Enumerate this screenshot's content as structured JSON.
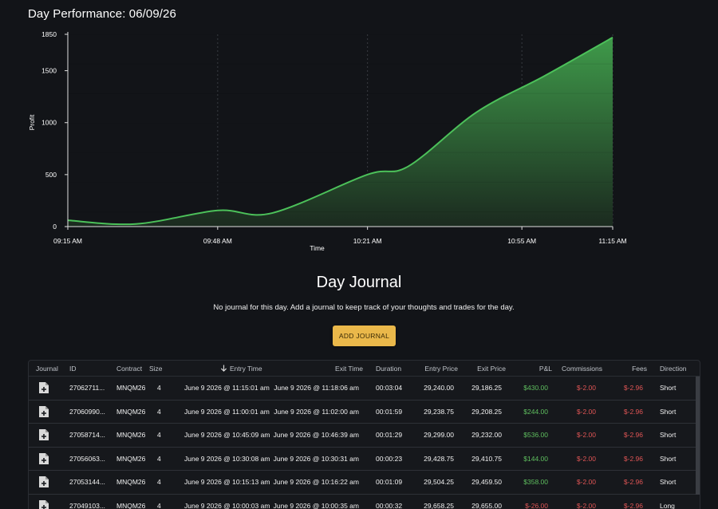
{
  "header": {
    "title": "Day Performance: 06/09/26"
  },
  "chart_data": {
    "type": "area",
    "title": "",
    "xlabel": "Time",
    "ylabel": "Profit",
    "ylim": [
      0,
      1850
    ],
    "y_ticks": [
      0,
      500,
      1000,
      1500,
      1850
    ],
    "x_ticks": [
      "09:15 AM",
      "09:48 AM",
      "10:21 AM",
      "10:55 AM",
      "11:15 AM"
    ],
    "x_tick_minutes": [
      0,
      33,
      66,
      100,
      120
    ],
    "grid": "vertical dashed at x ticks",
    "color": "#4cc15a",
    "points": [
      {
        "x": "09:15 AM",
        "y": 60
      },
      {
        "x": "09:30 AM",
        "y": 25
      },
      {
        "x": "09:48 AM",
        "y": 155
      },
      {
        "x": "10:00 AM",
        "y": 130
      },
      {
        "x": "10:21 AM",
        "y": 500
      },
      {
        "x": "10:30 AM",
        "y": 580
      },
      {
        "x": "10:45 AM",
        "y": 1100
      },
      {
        "x": "11:00 AM",
        "y": 1450
      },
      {
        "x": "11:15 AM",
        "y": 1820
      }
    ],
    "point_minutes": [
      0,
      15,
      33,
      45,
      66,
      75,
      90,
      105,
      120
    ]
  },
  "journal": {
    "title": "Day Journal",
    "empty_message": "No journal for this day. Add a journal to keep track of your thoughts and trades for the day.",
    "add_button": "ADD JOURNAL"
  },
  "table": {
    "headers": {
      "journal": "Journal",
      "id": "ID",
      "contract": "Contract",
      "size": "Size",
      "entry_time": "Entry Time",
      "exit_time": "Exit Time",
      "duration": "Duration",
      "entry_price": "Entry Price",
      "exit_price": "Exit Price",
      "pnl": "P&L",
      "commissions": "Commissions",
      "fees": "Fees",
      "direction": "Direction"
    },
    "rows": [
      {
        "id": "27062711...",
        "contract": "MNQM26",
        "size": "4",
        "entry_time": "June 9 2026 @ 11:15:01 am",
        "exit_time": "June 9 2026 @ 11:18:06 am",
        "duration": "00:03:04",
        "entry_price": "29,240.00",
        "exit_price": "29,186.25",
        "pnl": "$430.00",
        "commissions": "$-2.00",
        "fees": "$-2.96",
        "direction": "Short"
      },
      {
        "id": "27060990...",
        "contract": "MNQM26",
        "size": "4",
        "entry_time": "June 9 2026 @ 11:00:01 am",
        "exit_time": "June 9 2026 @ 11:02:00 am",
        "duration": "00:01:59",
        "entry_price": "29,238.75",
        "exit_price": "29,208.25",
        "pnl": "$244.00",
        "commissions": "$-2.00",
        "fees": "$-2.96",
        "direction": "Short"
      },
      {
        "id": "27058714...",
        "contract": "MNQM26",
        "size": "4",
        "entry_time": "June 9 2026 @ 10:45:09 am",
        "exit_time": "June 9 2026 @ 10:46:39 am",
        "duration": "00:01:29",
        "entry_price": "29,299.00",
        "exit_price": "29,232.00",
        "pnl": "$536.00",
        "commissions": "$-2.00",
        "fees": "$-2.96",
        "direction": "Short"
      },
      {
        "id": "27056063...",
        "contract": "MNQM26",
        "size": "4",
        "entry_time": "June 9 2026 @ 10:30:08 am",
        "exit_time": "June 9 2026 @ 10:30:31 am",
        "duration": "00:00:23",
        "entry_price": "29,428.75",
        "exit_price": "29,410.75",
        "pnl": "$144.00",
        "commissions": "$-2.00",
        "fees": "$-2.96",
        "direction": "Short"
      },
      {
        "id": "27053144...",
        "contract": "MNQM26",
        "size": "4",
        "entry_time": "June 9 2026 @ 10:15:13 am",
        "exit_time": "June 9 2026 @ 10:16:22 am",
        "duration": "00:01:09",
        "entry_price": "29,504.25",
        "exit_price": "29,459.50",
        "pnl": "$358.00",
        "commissions": "$-2.00",
        "fees": "$-2.96",
        "direction": "Short"
      },
      {
        "id": "27049103...",
        "contract": "MNQM26",
        "size": "4",
        "entry_time": "June 9 2026 @ 10:00:03 am",
        "exit_time": "June 9 2026 @ 10:00:35 am",
        "duration": "00:00:32",
        "entry_price": "29,658.25",
        "exit_price": "29,655.00",
        "pnl": "$-26.00",
        "commissions": "$-2.00",
        "fees": "$-2.96",
        "direction": "Long"
      }
    ]
  }
}
